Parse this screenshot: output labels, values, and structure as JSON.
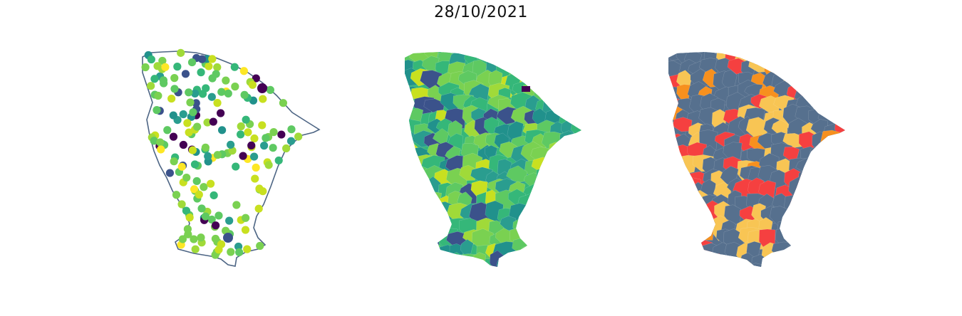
{
  "figure": {
    "title": "28/10/2021"
  },
  "palette": {
    "viridis": [
      "#440154",
      "#3b528b",
      "#21918c",
      "#2a9d8f",
      "#35b779",
      "#5ec962",
      "#7ad151",
      "#a0da39",
      "#c8e020",
      "#fde725"
    ],
    "category": {
      "gray_blue": "#56708e",
      "red": "#f54040",
      "yellow": "#f8c554",
      "orange": "#f7901e"
    },
    "outline": "#4d6584"
  },
  "panels": [
    {
      "name": "station-points-map",
      "style": "points"
    },
    {
      "name": "municipality-choropleth-map",
      "style": "viridis-choropleth"
    },
    {
      "name": "municipality-category-map",
      "style": "categorical-choropleth"
    }
  ]
}
